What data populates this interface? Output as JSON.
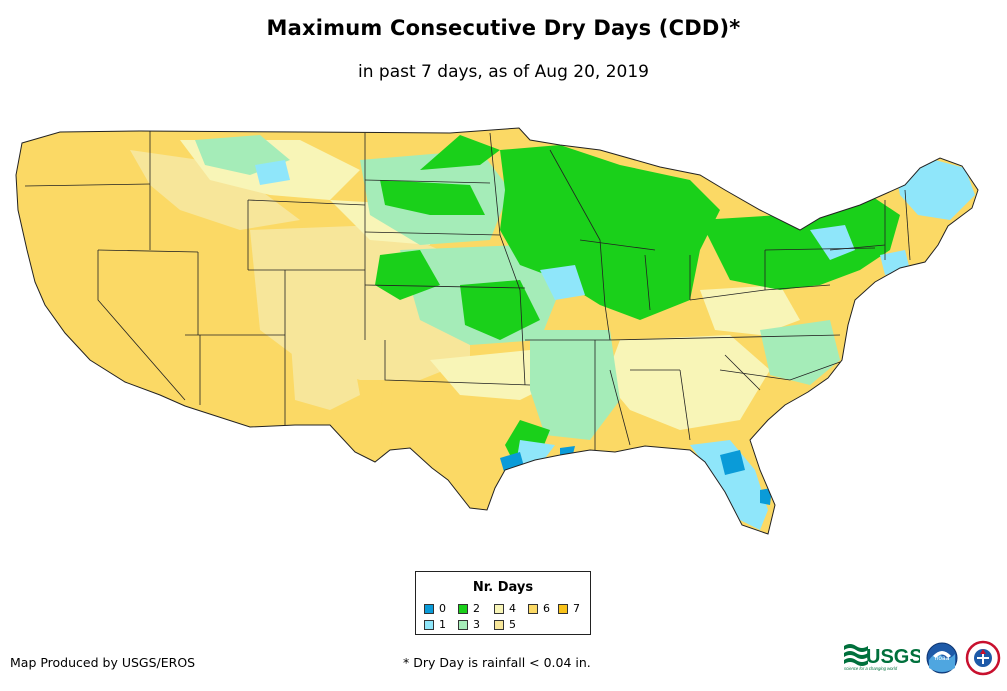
{
  "title": "Maximum Consecutive Dry Days (CDD)*",
  "subtitle": "in past 7 days, as of Aug 20, 2019",
  "legend": {
    "title": "Nr. Days",
    "items": [
      {
        "label": "0",
        "color": "#0a9bd8"
      },
      {
        "label": "1",
        "color": "#8fe6fa"
      },
      {
        "label": "2",
        "color": "#1ad01a"
      },
      {
        "label": "3",
        "color": "#a5ecb8"
      },
      {
        "label": "4",
        "color": "#f8f5b7"
      },
      {
        "label": "5",
        "color": "#f7e69a"
      },
      {
        "label": "6",
        "color": "#fbd965"
      },
      {
        "label": "7",
        "color": "#f8c21a"
      }
    ]
  },
  "footer": {
    "producer": "Map Produced by USGS/EROS",
    "note": "* Dry Day is rainfall < 0.04 in."
  },
  "logos": {
    "usgs": {
      "text": "USGS",
      "tagline": "science for a changing world"
    },
    "noaa": {
      "text": "noaa"
    }
  }
}
